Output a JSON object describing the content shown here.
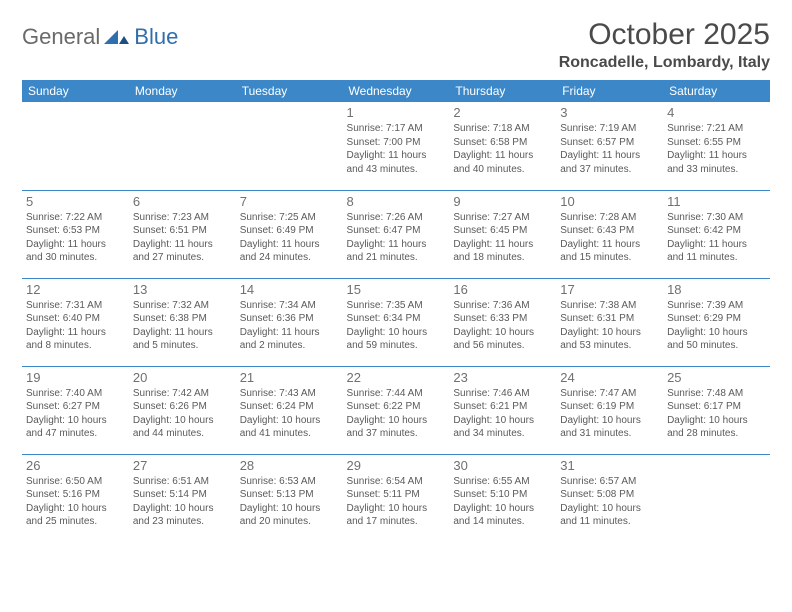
{
  "brand": {
    "part1": "General",
    "part2": "Blue"
  },
  "title": "October 2025",
  "location": "Roncadelle, Lombardy, Italy",
  "colors": {
    "header_bg": "#3b87c8",
    "header_text": "#ffffff",
    "border": "#3b87c8",
    "text": "#4b4b4b",
    "daynum": "#707070",
    "logo_blue": "#2f6fae",
    "logo_gray": "#6a6a6a"
  },
  "dayNames": [
    "Sunday",
    "Monday",
    "Tuesday",
    "Wednesday",
    "Thursday",
    "Friday",
    "Saturday"
  ],
  "weeks": [
    [
      null,
      null,
      null,
      {
        "n": "1",
        "sr": "7:17 AM",
        "ss": "7:00 PM",
        "dl": "11 hours and 43 minutes."
      },
      {
        "n": "2",
        "sr": "7:18 AM",
        "ss": "6:58 PM",
        "dl": "11 hours and 40 minutes."
      },
      {
        "n": "3",
        "sr": "7:19 AM",
        "ss": "6:57 PM",
        "dl": "11 hours and 37 minutes."
      },
      {
        "n": "4",
        "sr": "7:21 AM",
        "ss": "6:55 PM",
        "dl": "11 hours and 33 minutes."
      }
    ],
    [
      {
        "n": "5",
        "sr": "7:22 AM",
        "ss": "6:53 PM",
        "dl": "11 hours and 30 minutes."
      },
      {
        "n": "6",
        "sr": "7:23 AM",
        "ss": "6:51 PM",
        "dl": "11 hours and 27 minutes."
      },
      {
        "n": "7",
        "sr": "7:25 AM",
        "ss": "6:49 PM",
        "dl": "11 hours and 24 minutes."
      },
      {
        "n": "8",
        "sr": "7:26 AM",
        "ss": "6:47 PM",
        "dl": "11 hours and 21 minutes."
      },
      {
        "n": "9",
        "sr": "7:27 AM",
        "ss": "6:45 PM",
        "dl": "11 hours and 18 minutes."
      },
      {
        "n": "10",
        "sr": "7:28 AM",
        "ss": "6:43 PM",
        "dl": "11 hours and 15 minutes."
      },
      {
        "n": "11",
        "sr": "7:30 AM",
        "ss": "6:42 PM",
        "dl": "11 hours and 11 minutes."
      }
    ],
    [
      {
        "n": "12",
        "sr": "7:31 AM",
        "ss": "6:40 PM",
        "dl": "11 hours and 8 minutes."
      },
      {
        "n": "13",
        "sr": "7:32 AM",
        "ss": "6:38 PM",
        "dl": "11 hours and 5 minutes."
      },
      {
        "n": "14",
        "sr": "7:34 AM",
        "ss": "6:36 PM",
        "dl": "11 hours and 2 minutes."
      },
      {
        "n": "15",
        "sr": "7:35 AM",
        "ss": "6:34 PM",
        "dl": "10 hours and 59 minutes."
      },
      {
        "n": "16",
        "sr": "7:36 AM",
        "ss": "6:33 PM",
        "dl": "10 hours and 56 minutes."
      },
      {
        "n": "17",
        "sr": "7:38 AM",
        "ss": "6:31 PM",
        "dl": "10 hours and 53 minutes."
      },
      {
        "n": "18",
        "sr": "7:39 AM",
        "ss": "6:29 PM",
        "dl": "10 hours and 50 minutes."
      }
    ],
    [
      {
        "n": "19",
        "sr": "7:40 AM",
        "ss": "6:27 PM",
        "dl": "10 hours and 47 minutes."
      },
      {
        "n": "20",
        "sr": "7:42 AM",
        "ss": "6:26 PM",
        "dl": "10 hours and 44 minutes."
      },
      {
        "n": "21",
        "sr": "7:43 AM",
        "ss": "6:24 PM",
        "dl": "10 hours and 41 minutes."
      },
      {
        "n": "22",
        "sr": "7:44 AM",
        "ss": "6:22 PM",
        "dl": "10 hours and 37 minutes."
      },
      {
        "n": "23",
        "sr": "7:46 AM",
        "ss": "6:21 PM",
        "dl": "10 hours and 34 minutes."
      },
      {
        "n": "24",
        "sr": "7:47 AM",
        "ss": "6:19 PM",
        "dl": "10 hours and 31 minutes."
      },
      {
        "n": "25",
        "sr": "7:48 AM",
        "ss": "6:17 PM",
        "dl": "10 hours and 28 minutes."
      }
    ],
    [
      {
        "n": "26",
        "sr": "6:50 AM",
        "ss": "5:16 PM",
        "dl": "10 hours and 25 minutes."
      },
      {
        "n": "27",
        "sr": "6:51 AM",
        "ss": "5:14 PM",
        "dl": "10 hours and 23 minutes."
      },
      {
        "n": "28",
        "sr": "6:53 AM",
        "ss": "5:13 PM",
        "dl": "10 hours and 20 minutes."
      },
      {
        "n": "29",
        "sr": "6:54 AM",
        "ss": "5:11 PM",
        "dl": "10 hours and 17 minutes."
      },
      {
        "n": "30",
        "sr": "6:55 AM",
        "ss": "5:10 PM",
        "dl": "10 hours and 14 minutes."
      },
      {
        "n": "31",
        "sr": "6:57 AM",
        "ss": "5:08 PM",
        "dl": "10 hours and 11 minutes."
      },
      null
    ]
  ],
  "labels": {
    "sunrise": "Sunrise:",
    "sunset": "Sunset:",
    "daylight": "Daylight:"
  }
}
